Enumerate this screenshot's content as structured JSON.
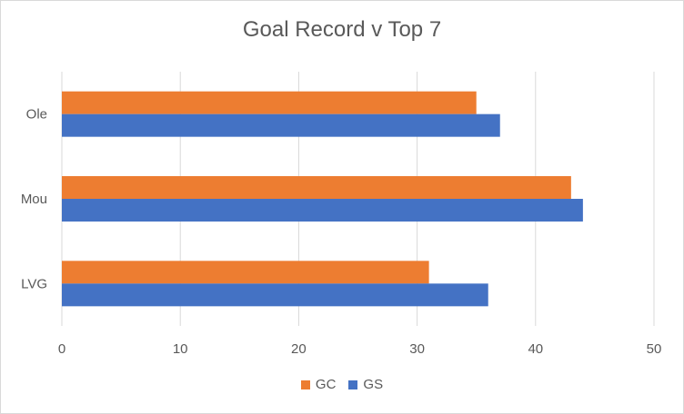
{
  "chart_data": {
    "type": "bar",
    "orientation": "horizontal",
    "title": "Goal Record v Top 7",
    "categories": [
      "Ole",
      "Mou",
      "LVG"
    ],
    "series": [
      {
        "name": "GC",
        "values": [
          35,
          43,
          31
        ],
        "color": "#ED7D31"
      },
      {
        "name": "GS",
        "values": [
          37,
          44,
          36
        ],
        "color": "#4472C4"
      }
    ],
    "xlim": [
      0,
      50
    ],
    "xticks": [
      0,
      10,
      20,
      30,
      40,
      50
    ],
    "grid": true,
    "legend_position": "bottom"
  }
}
